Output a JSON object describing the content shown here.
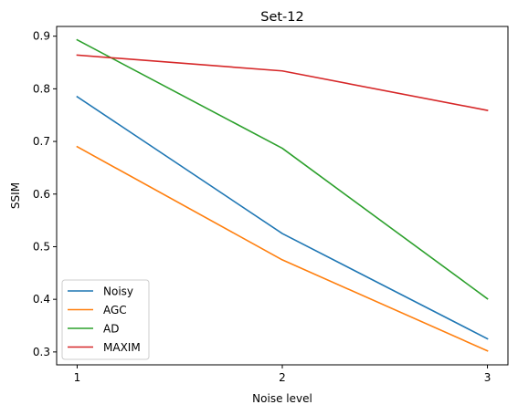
{
  "chart_data": {
    "type": "line",
    "title": "Set-12",
    "xlabel": "Noise level",
    "ylabel": "SSIM",
    "x": [
      1,
      2,
      3
    ],
    "x_ticks": [
      "1",
      "2",
      "3"
    ],
    "y_ticks": [
      "0.3",
      "0.4",
      "0.5",
      "0.6",
      "0.7",
      "0.8",
      "0.9"
    ],
    "xlim": [
      0.9,
      3.1
    ],
    "ylim": [
      0.2755,
      0.9185
    ],
    "grid": false,
    "legend_position": "lower-left",
    "series": [
      {
        "name": "Noisy",
        "values": [
          0.785,
          0.525,
          0.325
        ],
        "color": "#1f77b4"
      },
      {
        "name": "AGC",
        "values": [
          0.69,
          0.475,
          0.302
        ],
        "color": "#ff7f0e"
      },
      {
        "name": "AD",
        "values": [
          0.893,
          0.687,
          0.401
        ],
        "color": "#2ca02c"
      },
      {
        "name": "MAXIM",
        "values": [
          0.864,
          0.834,
          0.759
        ],
        "color": "#d62728"
      }
    ]
  }
}
